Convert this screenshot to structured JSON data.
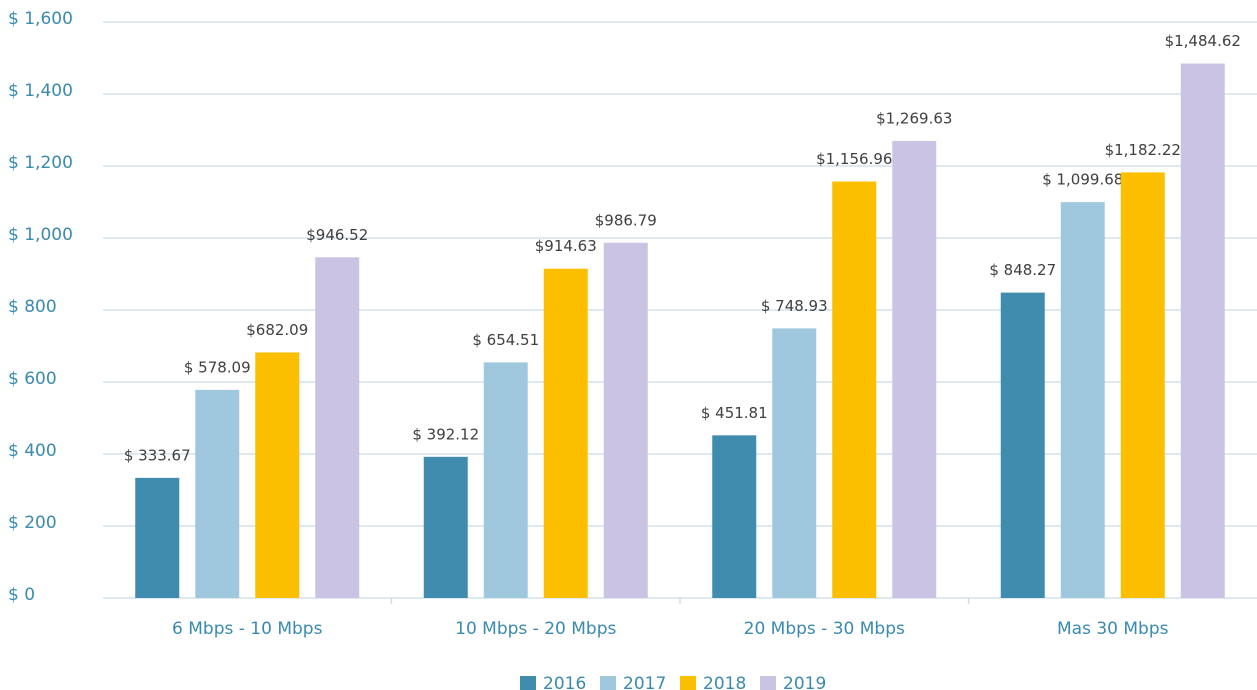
{
  "chart_data": {
    "type": "bar",
    "categories": [
      "6 Mbps - 10 Mbps",
      "10 Mbps - 20 Mbps",
      "20 Mbps - 30 Mbps",
      "Mas 30 Mbps"
    ],
    "series": [
      {
        "name": "2016",
        "color": "#3f8caf",
        "values": [
          333.67,
          392.12,
          451.81,
          848.27
        ],
        "value_labels": [
          "$ 333.67",
          "$ 392.12",
          "$ 451.81",
          "$ 848.27"
        ]
      },
      {
        "name": "2017",
        "color": "#9fc8de",
        "values": [
          578.09,
          654.51,
          748.93,
          1099.68
        ],
        "value_labels": [
          "$ 578.09",
          "$ 654.51",
          "$ 748.93",
          "$ 1,099.68"
        ]
      },
      {
        "name": "2018",
        "color": "#fcbf00",
        "values": [
          682.09,
          914.63,
          1156.96,
          1182.22
        ],
        "value_labels": [
          "$682.09",
          "$914.63",
          "$1,156.96",
          "$1,182.22"
        ]
      },
      {
        "name": "2019",
        "color": "#cbc3e3",
        "values": [
          946.52,
          986.79,
          1269.63,
          1484.62
        ],
        "value_labels": [
          "$946.52",
          "$986.79",
          "$1,269.63",
          "$1,484.62"
        ]
      }
    ],
    "ylim": [
      0,
      1600
    ],
    "yticks": [
      {
        "value": 0,
        "label": "$ 0"
      },
      {
        "value": 200,
        "label": "$ 200"
      },
      {
        "value": 400,
        "label": "$ 400"
      },
      {
        "value": 600,
        "label": "$ 600"
      },
      {
        "value": 800,
        "label": "$ 800"
      },
      {
        "value": 1000,
        "label": "$ 1,000"
      },
      {
        "value": 1200,
        "label": "$ 1,200"
      },
      {
        "value": 1400,
        "label": "$ 1,400"
      },
      {
        "value": 1600,
        "label": "$ 1,600"
      }
    ],
    "grid": true,
    "legend": "bottom"
  }
}
